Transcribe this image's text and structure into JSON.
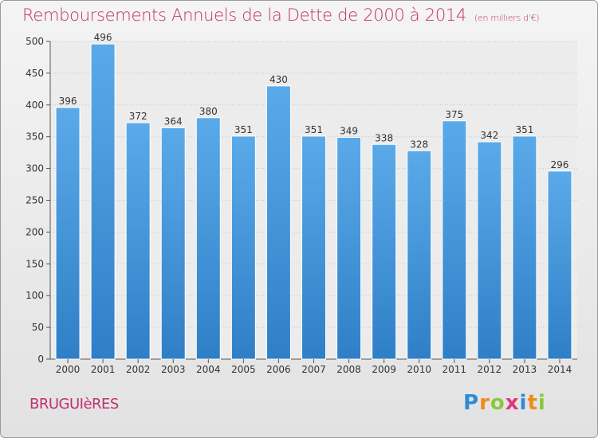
{
  "title": "Remboursements Annuels de la Dette de 2000 à 2014",
  "subtitle": "(en milliers d'€)",
  "commune": "BRUGUIèRES",
  "logo": {
    "text": "Proxiti",
    "letters": [
      {
        "ch": "P",
        "color": "#2e8bd6"
      },
      {
        "ch": "r",
        "color": "#f08a1c"
      },
      {
        "ch": "o",
        "color": "#8cc63f"
      },
      {
        "ch": "x",
        "color": "#e0357a"
      },
      {
        "ch": "i",
        "color": "#2e8bd6"
      },
      {
        "ch": "t",
        "color": "#f08a1c"
      },
      {
        "ch": "i",
        "color": "#8cc63f"
      }
    ]
  },
  "colors": {
    "accent": "#c0306b",
    "bar_top": "#5aaaea",
    "bar_bottom": "#2f7fc7",
    "grid": "#c8c8c8",
    "axis_text": "#333333"
  },
  "chart_data": {
    "type": "bar",
    "categories": [
      "2000",
      "2001",
      "2002",
      "2003",
      "2004",
      "2005",
      "2006",
      "2007",
      "2008",
      "2009",
      "2010",
      "2011",
      "2012",
      "2013",
      "2014"
    ],
    "values": [
      396,
      496,
      372,
      364,
      380,
      351,
      430,
      351,
      349,
      338,
      328,
      375,
      342,
      351,
      296
    ],
    "ylim": [
      0,
      500
    ],
    "yticks": [
      0,
      50,
      100,
      150,
      200,
      250,
      300,
      350,
      400,
      450,
      500
    ],
    "grid": true
  }
}
